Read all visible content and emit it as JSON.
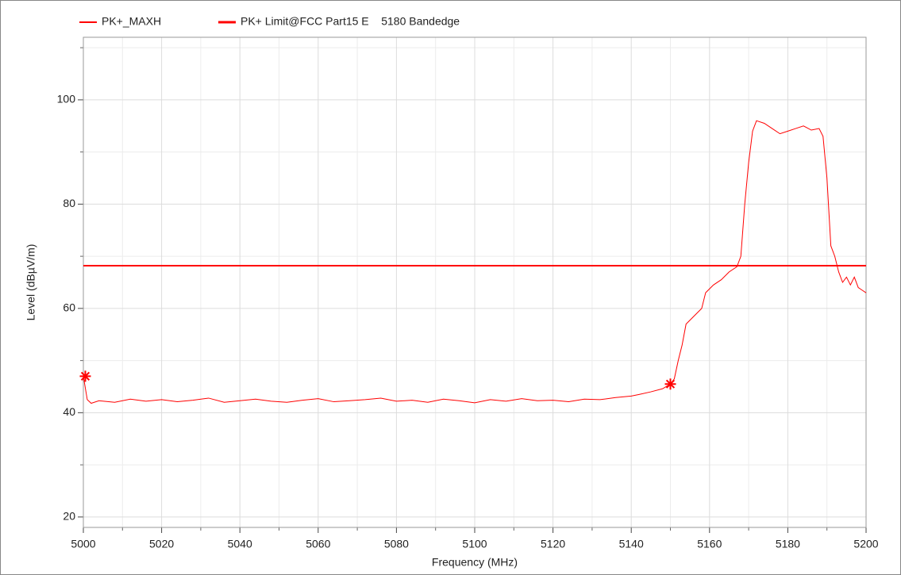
{
  "chart_data": {
    "type": "line",
    "xlabel": "Frequency (MHz)",
    "ylabel": "Level (dBµV/m)",
    "xlim": [
      5000,
      5200
    ],
    "xticks": [
      5000,
      5020,
      5040,
      5060,
      5080,
      5100,
      5120,
      5140,
      5160,
      5180,
      5200
    ],
    "xminorticks": [
      5010,
      5030,
      5050,
      5070,
      5090,
      5110,
      5130,
      5150,
      5170,
      5190
    ],
    "ylim": [
      18,
      112
    ],
    "yticks": [
      20,
      40,
      60,
      80,
      100
    ],
    "yminorticks": [
      30,
      50,
      70,
      90,
      110
    ],
    "grid": true,
    "series": [
      {
        "name": "PK+_MAXH",
        "color": "#ff0000",
        "width": 1,
        "x": [
          5000,
          5001,
          5002,
          5004,
          5008,
          5012,
          5016,
          5020,
          5024,
          5028,
          5032,
          5036,
          5040,
          5044,
          5048,
          5052,
          5056,
          5060,
          5064,
          5068,
          5072,
          5076,
          5080,
          5084,
          5088,
          5092,
          5096,
          5100,
          5104,
          5108,
          5112,
          5116,
          5120,
          5124,
          5128,
          5132,
          5136,
          5140,
          5142,
          5145,
          5148,
          5150,
          5151,
          5152,
          5153,
          5154,
          5156,
          5158,
          5159,
          5161,
          5163,
          5165,
          5167,
          5168,
          5169,
          5170,
          5171,
          5172,
          5174,
          5176,
          5178,
          5180,
          5182,
          5184,
          5186,
          5188,
          5189,
          5190,
          5191,
          5192,
          5193,
          5194,
          5195,
          5196,
          5197,
          5198,
          5199,
          5200
        ],
        "values": [
          47,
          42.5,
          41.8,
          42.3,
          42.0,
          42.6,
          42.2,
          42.5,
          42.1,
          42.4,
          42.8,
          42.0,
          42.3,
          42.6,
          42.2,
          42.0,
          42.4,
          42.7,
          42.1,
          42.3,
          42.5,
          42.8,
          42.2,
          42.4,
          42.0,
          42.6,
          42.3,
          41.9,
          42.5,
          42.2,
          42.7,
          42.3,
          42.4,
          42.1,
          42.6,
          42.5,
          42.9,
          43.2,
          43.5,
          44.0,
          44.6,
          45.5,
          46.5,
          50,
          53,
          57,
          58.5,
          60,
          63,
          64.5,
          65.5,
          67,
          68,
          70,
          80,
          88,
          94,
          96,
          95.5,
          94.5,
          93.5,
          94,
          94.5,
          95,
          94.2,
          94.5,
          93,
          85,
          72,
          70,
          67,
          65,
          66,
          64.5,
          66,
          64,
          63.5,
          63
        ]
      },
      {
        "name": "PK+ Limit@FCC Part15 E    5180 Bandedge",
        "color": "#ff0000",
        "width": 2,
        "x": [
          5000,
          5200
        ],
        "values": [
          68.2,
          68.2
        ]
      }
    ],
    "markers": {
      "color": "#ff0000",
      "x": [
        5000.5,
        5150
      ],
      "values": [
        47,
        45.5
      ]
    }
  }
}
